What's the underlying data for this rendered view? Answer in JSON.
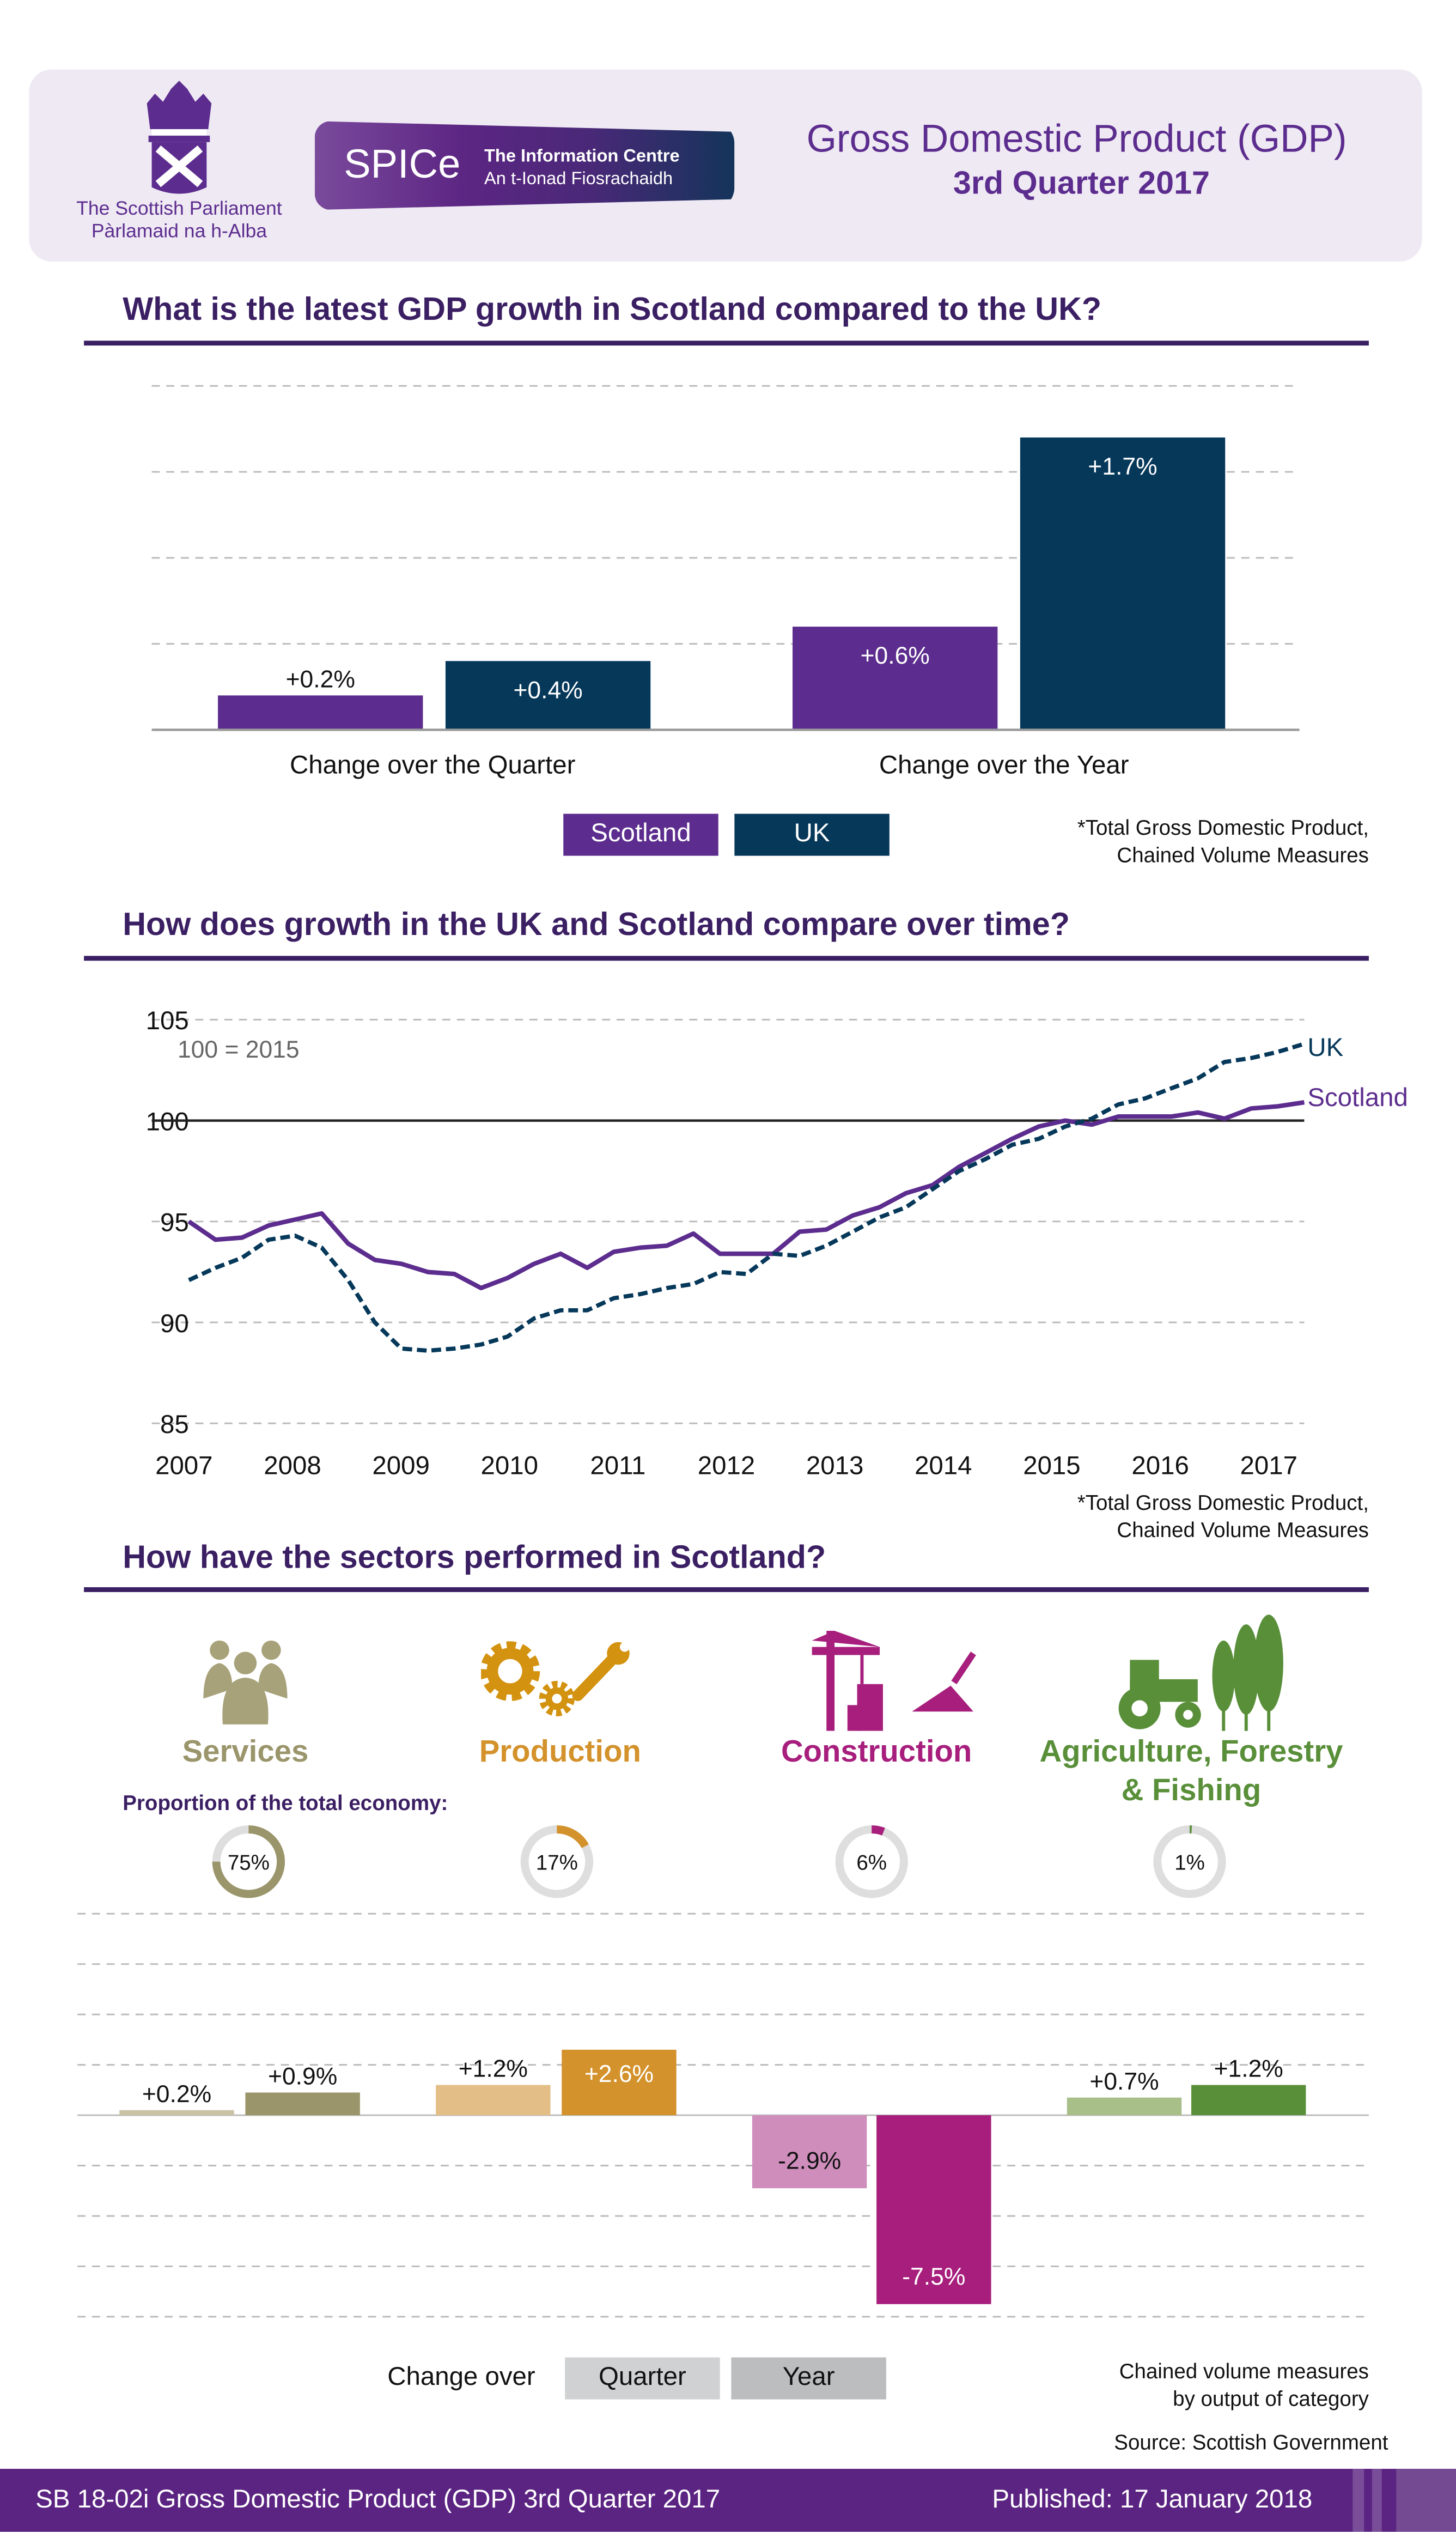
{
  "header": {
    "parliament_name": "The Scottish Parliament",
    "parliament_gaelic": "Pàrlamaid na h-Alba",
    "spice_logo": "SPICe",
    "spice_subtitle": "The Information Centre",
    "spice_gaelic": "An t-Ionad Fiosrachaidh",
    "title": "Gross Domestic Product (GDP)",
    "subtitle": "3rd Quarter 2017"
  },
  "colors": {
    "scotland": "#5c2d8e",
    "uk": "#06385a",
    "heading": "#3b1f63",
    "footer": "#5b2482"
  },
  "section1": {
    "title": "What is the latest GDP growth in Scotland compared to the UK?",
    "note_line1": "*Total Gross Domestic Product,",
    "note_line2": "Chained Volume Measures"
  },
  "section2": {
    "title": "How does growth in the UK and Scotland compare over time?",
    "note_line1": "*Total Gross Domestic Product,",
    "note_line2": "Chained Volume Measures"
  },
  "section3": {
    "title": "How have the sectors performed in Scotland?",
    "proportion_label": "Proportion of the total economy:",
    "sectors": [
      {
        "name": "Services",
        "icon": "people-icon",
        "share": "75%",
        "color": "#9a956a"
      },
      {
        "name": "Production",
        "icon": "gears-wrench-icon",
        "share": "17%",
        "color": "#d3922b"
      },
      {
        "name": "Construction",
        "icon": "crane-trowel-icon",
        "share": "6%",
        "color": "#a71e7d"
      },
      {
        "name": "Agriculture, Forestry",
        "name_line2": "& Fishing",
        "icon": "tractor-trees-icon",
        "share": "1%",
        "color": "#5a8f3a"
      }
    ],
    "legend_label": "Change over",
    "legend_quarter": "Quarter",
    "legend_year": "Year",
    "note_line1": "Chained volume measures",
    "note_line2": "by output of category",
    "source": "Source: Scottish Government"
  },
  "footer": {
    "left": "SB 18-02i Gross Domestic Product (GDP) 3rd Quarter 2017",
    "right": "Published: 17 January 2018"
  },
  "chart_data": [
    {
      "type": "bar",
      "categories": [
        "Change over the Quarter",
        "Change over the Year"
      ],
      "series": [
        {
          "name": "Scotland",
          "values": [
            0.2,
            0.6
          ],
          "labels": [
            "+0.2%",
            "+0.6%"
          ]
        },
        {
          "name": "UK",
          "values": [
            0.4,
            1.7
          ],
          "labels": [
            "+0.4%",
            "+1.7%"
          ]
        }
      ],
      "ylim": [
        0,
        2.0
      ],
      "grid": true,
      "legend": "bottom-center"
    },
    {
      "type": "line",
      "x_ticks": [
        "2007",
        "2008",
        "2009",
        "2010",
        "2011",
        "2012",
        "2013",
        "2014",
        "2015",
        "2016",
        "2017"
      ],
      "y_ticks": [
        "85",
        "90",
        "95",
        "100",
        "105"
      ],
      "ylim": [
        85,
        105
      ],
      "annotation": "100 = 2015",
      "frequency": "quarterly, 2007 Q1 – 2017 Q3",
      "series": [
        {
          "name": "UK",
          "style": "dashed",
          "values": [
            92.1,
            92.7,
            93.2,
            94.1,
            94.3,
            93.7,
            92.1,
            90.0,
            88.7,
            88.6,
            88.7,
            88.9,
            89.3,
            90.2,
            90.6,
            90.6,
            91.2,
            91.4,
            91.7,
            91.9,
            92.5,
            92.4,
            93.4,
            93.3,
            93.8,
            94.5,
            95.2,
            95.7,
            96.6,
            97.5,
            98.1,
            98.8,
            99.1,
            99.7,
            100.1,
            100.8,
            101.1,
            101.6,
            102.1,
            102.9,
            103.1,
            103.4,
            103.8
          ]
        },
        {
          "name": "Scotland",
          "style": "solid",
          "values": [
            95.0,
            94.1,
            94.2,
            94.8,
            95.1,
            95.4,
            93.9,
            93.1,
            92.9,
            92.5,
            92.4,
            91.7,
            92.2,
            92.9,
            93.4,
            92.7,
            93.5,
            93.7,
            93.8,
            94.4,
            93.4,
            93.4,
            93.4,
            94.5,
            94.6,
            95.3,
            95.7,
            96.4,
            96.8,
            97.7,
            98.4,
            99.1,
            99.7,
            100.0,
            99.8,
            100.2,
            100.2,
            100.2,
            100.4,
            100.1,
            100.6,
            100.7,
            100.9
          ]
        }
      ],
      "grid": true,
      "legend": "line-end labels"
    },
    {
      "type": "bar",
      "categories": [
        "Services",
        "Production",
        "Construction",
        "Agriculture, Forestry & Fishing"
      ],
      "series": [
        {
          "name": "Quarter",
          "values": [
            0.2,
            1.2,
            -2.9,
            0.7
          ],
          "labels": [
            "+0.2%",
            "+1.2%",
            "-2.9%",
            "+0.7%"
          ],
          "colors": [
            "#c9c2a4",
            "#e4be87",
            "#cf8dbc",
            "#a8bf8a"
          ]
        },
        {
          "name": "Year",
          "values": [
            0.9,
            2.6,
            -7.5,
            1.2
          ],
          "labels": [
            "+0.9%",
            "+2.6%",
            "-7.5%",
            "+1.2%"
          ],
          "colors": [
            "#9a956a",
            "#d3922b",
            "#a71e7d",
            "#5a8f3a"
          ]
        }
      ],
      "ylim": [
        -8,
        8
      ],
      "grid": true,
      "legend": "bottom-center"
    }
  ]
}
